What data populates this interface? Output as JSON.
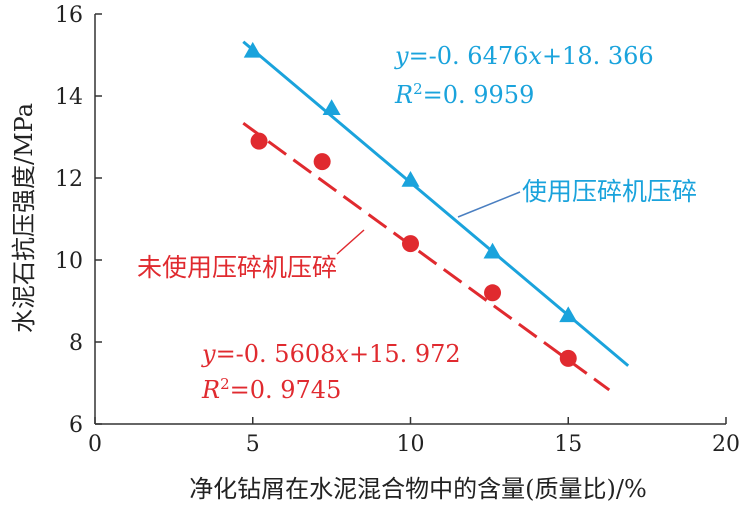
{
  "chart_data": {
    "type": "scatter",
    "xlabel": "净化钻屑在水泥混合物中的含量(质量比)/%",
    "ylabel": "水泥石抗压强度/MPa",
    "xlim": [
      0,
      20
    ],
    "ylim": [
      6,
      16
    ],
    "xticks": [
      "0",
      "5",
      "10",
      "15",
      "20"
    ],
    "yticks": [
      "6",
      "8",
      "10",
      "12",
      "14",
      "16"
    ],
    "grid": false,
    "series": [
      {
        "name": "使用压碎机压碎",
        "marker": "triangle",
        "line_style": "solid",
        "color": "#1aa3dc",
        "points": [
          {
            "x": 5.0,
            "y": 15.1
          },
          {
            "x": 7.5,
            "y": 13.7
          },
          {
            "x": 10.0,
            "y": 11.95
          },
          {
            "x": 12.6,
            "y": 10.2
          },
          {
            "x": 15.0,
            "y": 8.65
          }
        ],
        "fit": {
          "slope": -0.6476,
          "intercept": 18.366,
          "x_range": [
            4.7,
            16.9
          ]
        },
        "equation_y": "y",
        "equation_rest": "=-0. 6476",
        "equation_x": "x",
        "equation_tail": "+18. 366",
        "r2_label": "R",
        "r2_sup": "2",
        "r2_value": "=0. 9959"
      },
      {
        "name": "未使用压碎机压碎",
        "marker": "circle",
        "line_style": "dashed",
        "color": "#e02a2f",
        "points": [
          {
            "x": 5.2,
            "y": 12.9
          },
          {
            "x": 7.2,
            "y": 12.4
          },
          {
            "x": 10.0,
            "y": 10.4
          },
          {
            "x": 12.6,
            "y": 9.2
          },
          {
            "x": 15.0,
            "y": 7.6
          }
        ],
        "fit": {
          "slope": -0.5608,
          "intercept": 15.972,
          "x_range": [
            4.7,
            16.3
          ]
        },
        "equation_y": "y",
        "equation_rest": "=-0. 5608",
        "equation_x": "x",
        "equation_tail": "+15. 972",
        "r2_label": "R",
        "r2_sup": "2",
        "r2_value": "=0. 9745"
      }
    ]
  }
}
